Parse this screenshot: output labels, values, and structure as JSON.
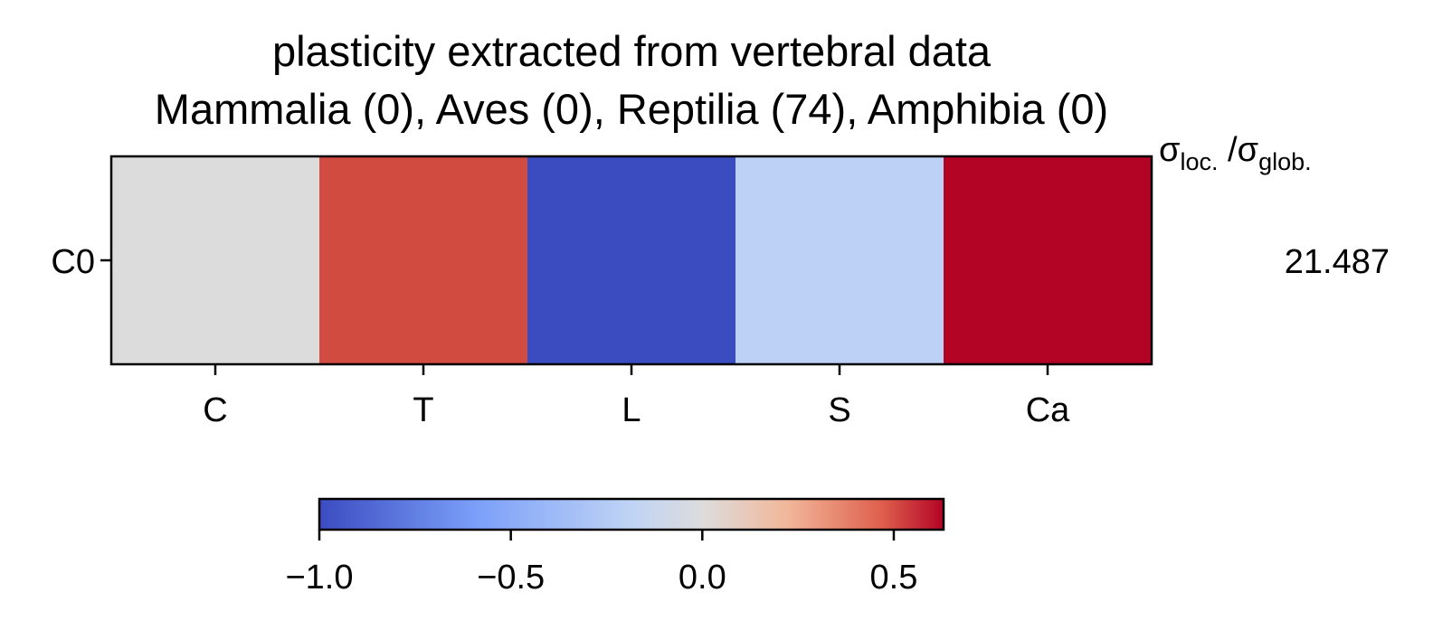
{
  "chart_data": {
    "type": "heatmap",
    "title_line1": "plasticity extracted from vertebral data",
    "title_line2": "Mammalia (0), Aves (0), Reptilia (74), Amphibia (0)",
    "rows": [
      "C0"
    ],
    "columns": [
      "C",
      "T",
      "L",
      "S",
      "Ca"
    ],
    "values": [
      [
        -0.05,
        0.5,
        -1.0,
        -0.55,
        0.63
      ]
    ],
    "colormap": "coolwarm",
    "colorbar": {
      "vmin": -1.0,
      "vmax": 0.63,
      "ticks": [
        -1.0,
        -0.5,
        0.0,
        0.5
      ],
      "tick_labels": [
        "−1.0",
        "−0.5",
        "0.0",
        "0.5"
      ],
      "placement": "bottom"
    },
    "side_header": {
      "sigma": "σ",
      "loc_sub": "loc.",
      "slash": " /",
      "glob_sub": "glob."
    },
    "side_values": [
      "21.487"
    ],
    "cell_colors": [
      "#DDDCDC",
      "#D24B40",
      "#3B4CC0",
      "#BDD1F6",
      "#B40426"
    ]
  }
}
